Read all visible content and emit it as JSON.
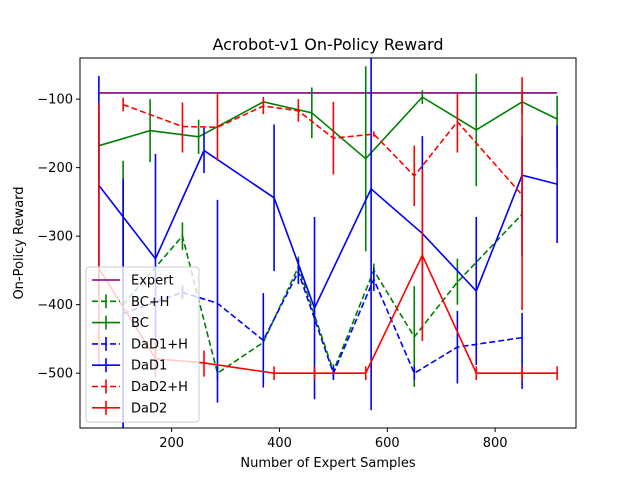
{
  "chart_data": {
    "type": "line",
    "title": "Acrobot-v1 On-Policy Reward",
    "xlabel": "Number of Expert Samples",
    "ylabel": "On-Policy Reward",
    "xlim": [
      30,
      950
    ],
    "ylim": [
      -580,
      -40
    ],
    "xticks": [
      200,
      400,
      600,
      800
    ],
    "yticks": [
      -500,
      -400,
      -300,
      -200,
      -100
    ],
    "grid": false,
    "legend_position": "lower-left",
    "series": [
      {
        "name": "Expert",
        "color": "#800080",
        "dash": "solid",
        "x": [
          65,
          915
        ],
        "y": [
          -91,
          -91
        ],
        "err": []
      },
      {
        "name": "BC+H",
        "color": "#008000",
        "dash": "dashed",
        "x": [
          110,
          220,
          285,
          370,
          435,
          500,
          575,
          650,
          730,
          850
        ],
        "y": [
          -400,
          -300,
          -500,
          -455,
          -345,
          -497,
          -350,
          -447,
          -367,
          -268
        ],
        "err": [
          [
            -610,
            -190
          ],
          [
            -320,
            -280
          ],
          [
            -510,
            -490
          ],
          [
            -465,
            -445
          ],
          [
            -360,
            -330
          ],
          [
            -507,
            -487
          ],
          [
            -360,
            -340
          ],
          [
            -520,
            -373
          ],
          [
            -400,
            -333
          ],
          [
            -278,
            -258
          ]
        ]
      },
      {
        "name": "BC",
        "color": "#008000",
        "dash": "solid",
        "x": [
          65,
          160,
          250,
          370,
          460,
          560,
          665,
          765,
          850,
          915
        ],
        "y": [
          -168,
          -146,
          -155,
          -104,
          -120,
          -187,
          -97,
          -145,
          -104,
          -129
        ],
        "err": [
          [
            -218,
            -118
          ],
          [
            -192,
            -100
          ],
          [
            -180,
            -130
          ],
          [
            -110,
            -98
          ],
          [
            -157,
            -83
          ],
          [
            -322,
            -52
          ],
          [
            -107,
            -87
          ],
          [
            -227,
            -63
          ],
          [
            -122,
            -86
          ],
          [
            -199,
            -95
          ]
        ]
      },
      {
        "name": "DaD1+H",
        "color": "#0000ff",
        "dash": "dashed",
        "x": [
          110,
          220,
          285,
          370,
          435,
          500,
          575,
          650,
          730,
          850
        ],
        "y": [
          -413,
          -382,
          -398,
          -452,
          -352,
          -500,
          -363,
          -500,
          -462,
          -448
        ],
        "err": [
          [
            -610,
            -216
          ],
          [
            -392,
            -372
          ],
          [
            -543,
            -247
          ],
          [
            -521,
            -383
          ],
          [
            -370,
            -334
          ],
          [
            -510,
            -490
          ],
          [
            -380,
            -346
          ],
          [
            -510,
            -490
          ],
          [
            -515,
            -409
          ],
          [
            -523,
            -412
          ]
        ]
      },
      {
        "name": "DaD1",
        "color": "#0000ff",
        "dash": "solid",
        "x": [
          65,
          170,
          260,
          390,
          465,
          570,
          665,
          765,
          850,
          915
        ],
        "y": [
          -226,
          -333,
          -175,
          -244,
          -405,
          -231,
          -296,
          -380,
          -211,
          -224
        ],
        "err": [
          [
            -386,
            -66
          ],
          [
            -475,
            -180
          ],
          [
            -208,
            -142
          ],
          [
            -351,
            -137
          ],
          [
            -538,
            -272
          ],
          [
            -554,
            92
          ],
          [
            -438,
            -154
          ],
          [
            -488,
            -272
          ],
          [
            -329,
            -155
          ],
          [
            -310,
            -138
          ]
        ]
      },
      {
        "name": "DaD2+H",
        "color": "#ff0000",
        "dash": "dashed",
        "x": [
          110,
          220,
          285,
          370,
          435,
          500,
          575,
          650,
          730,
          850
        ],
        "y": [
          -108,
          -140,
          -141,
          -110,
          -117,
          -157,
          -151,
          -212,
          -133,
          -240
        ],
        "err": [
          [
            -118,
            -98
          ],
          [
            -178,
            -105
          ],
          [
            -190,
            -92
          ],
          [
            -122,
            -97
          ],
          [
            -133,
            -100
          ],
          [
            -210,
            -104
          ],
          [
            -155,
            -147
          ],
          [
            -256,
            -168
          ],
          [
            -178,
            -90
          ],
          [
            -408,
            -68
          ]
        ]
      },
      {
        "name": "DaD2",
        "color": "#ff0000",
        "dash": "solid",
        "x": [
          65,
          170,
          260,
          390,
          465,
          560,
          665,
          765,
          850,
          915
        ],
        "y": [
          -347,
          -479,
          -485,
          -500,
          -500,
          -500,
          -328,
          -500,
          -500,
          -500
        ],
        "err": [
          [
            -490,
            -105
          ],
          [
            -505,
            -453
          ],
          [
            -505,
            -467
          ],
          [
            -510,
            -490
          ],
          [
            -510,
            -490
          ],
          [
            -510,
            -490
          ],
          [
            -453,
            -203
          ],
          [
            -510,
            -490
          ],
          [
            -510,
            -490
          ],
          [
            -510,
            -490
          ]
        ]
      }
    ]
  }
}
